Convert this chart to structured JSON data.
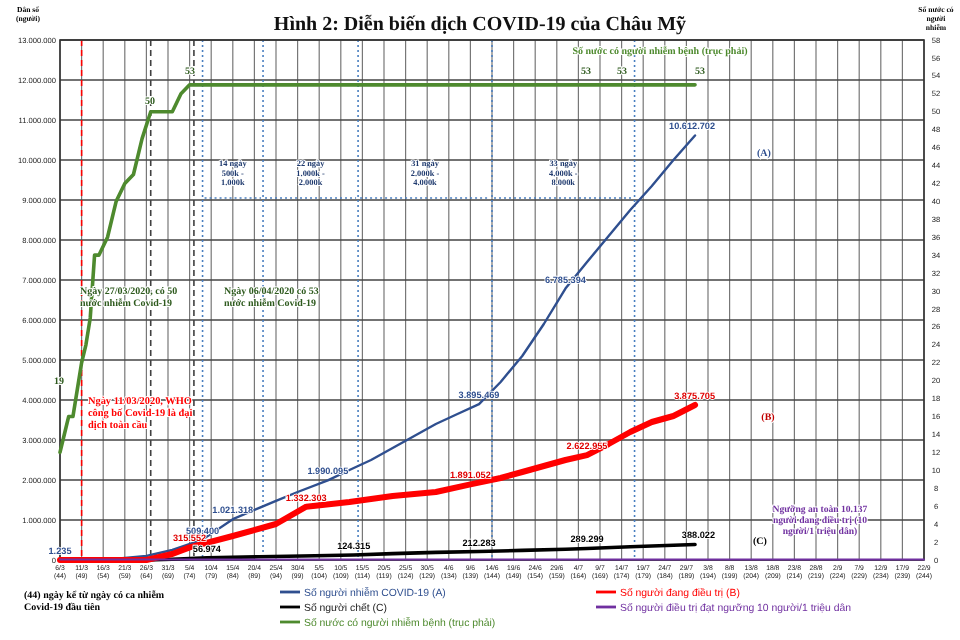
{
  "chart_data": {
    "type": "line",
    "title": "Hình 2: Diễn biến dịch COVID-19 của Châu Mỹ",
    "ylabel": "Dân số (người)",
    "y2label": "Số nước có người nhiễm",
    "xlim": [
      "--03-06",
      "--09-22"
    ],
    "xticks": [
      {
        "value": "--03-06",
        "label": "6/3 (44)"
      },
      {
        "value": "--03-11",
        "label": "11/3 (49)"
      },
      {
        "value": "--03-16",
        "label": "16/3 (54)"
      },
      {
        "value": "--03-21",
        "label": "21/3 (59)"
      },
      {
        "value": "--03-26",
        "label": "26/3 (64)"
      },
      {
        "value": "--03-31",
        "label": "31/3 (69)"
      },
      {
        "value": "--04-05",
        "label": "5/4 (74)"
      },
      {
        "value": "--04-10",
        "label": "10/4 (79)"
      },
      {
        "value": "--04-15",
        "label": "15/4 (84)"
      },
      {
        "value": "--04-20",
        "label": "20/4 (89)"
      },
      {
        "value": "--04-25",
        "label": "25/4 (94)"
      },
      {
        "value": "--04-30",
        "label": "30/4 (99)"
      },
      {
        "value": "--05-05",
        "label": "5/5 (104)"
      },
      {
        "value": "--05-10",
        "label": "10/5 (109)"
      },
      {
        "value": "--05-15",
        "label": "15/5 (114)"
      },
      {
        "value": "--05-20",
        "label": "20/5 (119)"
      },
      {
        "value": "--05-25",
        "label": "25/5 (124)"
      },
      {
        "value": "--05-30",
        "label": "30/5 (129)"
      },
      {
        "value": "--06-04",
        "label": "4/6 (134)"
      },
      {
        "value": "--06-09",
        "label": "9/6 (139)"
      },
      {
        "value": "--06-14",
        "label": "14/6 (144)"
      },
      {
        "value": "--06-19",
        "label": "19/6 (149)"
      },
      {
        "value": "--06-24",
        "label": "24/6 (154)"
      },
      {
        "value": "--06-29",
        "label": "29/6 (159)"
      },
      {
        "value": "--07-04",
        "label": "4/7 (164)"
      },
      {
        "value": "--07-09",
        "label": "9/7 (169)"
      },
      {
        "value": "--07-14",
        "label": "14/7 (174)"
      },
      {
        "value": "--07-19",
        "label": "19/7 (179)"
      },
      {
        "value": "--07-24",
        "label": "24/7 (184)"
      },
      {
        "value": "--07-29",
        "label": "29/7 (189)"
      },
      {
        "value": "--08-03",
        "label": "3/8 (194)"
      },
      {
        "value": "--08-08",
        "label": "8/8 (199)"
      },
      {
        "value": "--08-13",
        "label": "13/8 (204)"
      },
      {
        "value": "--08-18",
        "label": "18/8 (209)"
      },
      {
        "value": "--08-23",
        "label": "23/8 (214)"
      },
      {
        "value": "--08-28",
        "label": "28/8 (219)"
      },
      {
        "value": "--09-02",
        "label": "2/9 (224)"
      },
      {
        "value": "--09-07",
        "label": "7/9 (229)"
      },
      {
        "value": "--09-12",
        "label": "12/9 (234)"
      },
      {
        "value": "--09-17",
        "label": "17/9 (239)"
      },
      {
        "value": "--09-22",
        "label": "22/9 (244)"
      }
    ],
    "ylim": [
      0,
      13000000
    ],
    "yticks": [
      {
        "value": 0,
        "label": "0"
      },
      {
        "value": 1000000,
        "label": "1.000.000"
      },
      {
        "value": 2000000,
        "label": "2.000.000"
      },
      {
        "value": 3000000,
        "label": "3.000.000"
      },
      {
        "value": 4000000,
        "label": "4.000.000"
      },
      {
        "value": 5000000,
        "label": "5.000.000"
      },
      {
        "value": 6000000,
        "label": "6.000.000"
      },
      {
        "value": 7000000,
        "label": "7.000.000"
      },
      {
        "value": 8000000,
        "label": "8.000.000"
      },
      {
        "value": 9000000,
        "label": "9.000.000"
      },
      {
        "value": 10000000,
        "label": "10.000.000"
      },
      {
        "value": 11000000,
        "label": "11.000.000"
      },
      {
        "value": 12000000,
        "label": "12.000.000"
      },
      {
        "value": 13000000,
        "label": "13.000.000"
      }
    ],
    "y2lim": [
      0,
      58
    ],
    "y2ticks": [
      0,
      2,
      4,
      6,
      8,
      10,
      12,
      14,
      16,
      18,
      20,
      22,
      24,
      26,
      28,
      30,
      32,
      34,
      36,
      38,
      40,
      42,
      44,
      46,
      48,
      50,
      52,
      54,
      56,
      58
    ],
    "grid": true,
    "legend": "bottom",
    "marker": "none",
    "line_style": "solid",
    "series": [
      {
        "name": "Số người nhiễm COVID-19 (A)",
        "color": "#2f4f8f",
        "x": [
          "--03-06",
          "--03-16",
          "--03-26",
          "--04-01",
          "--04-08",
          "--04-15",
          "--04-20",
          "--04-25",
          "--04-30",
          "--05-07",
          "--05-12",
          "--05-17",
          "--05-22",
          "--05-27",
          "--06-01",
          "--06-06",
          "--06-11",
          "--06-16",
          "--06-21",
          "--06-26",
          "--07-01",
          "--07-06",
          "--07-11",
          "--07-16",
          "--07-21",
          "--07-26",
          "--07-31"
        ],
        "values": [
          1235,
          0,
          100000,
          250000,
          509400,
          1021318,
          1250000,
          1480000,
          1700000,
          1990095,
          2250000,
          2500000,
          2800000,
          3100000,
          3400000,
          3650000,
          3895469,
          4450000,
          5100000,
          5900000,
          6785394,
          7450000,
          8100000,
          8750000,
          9350000,
          10000000,
          10612702
        ]
      },
      {
        "name": "Số người chết (C)",
        "color": "#000000",
        "x": [
          "--03-06",
          "--03-26",
          "--04-01",
          "--04-09",
          "--04-21",
          "--05-01",
          "--05-13",
          "--05-22",
          "--06-01",
          "--06-11",
          "--06-21",
          "--07-01",
          "--07-06",
          "--07-16",
          "--07-26",
          "--07-31"
        ],
        "values": [
          0,
          0,
          20000,
          56974,
          80000,
          100000,
          124315,
          160000,
          190000,
          212283,
          240000,
          270000,
          289299,
          330000,
          370000,
          388022
        ]
      },
      {
        "name": "Số nước có người nhiễm bệnh (trục phải)",
        "color": "#4e8a2e",
        "axis": "y2",
        "x": [
          "--03-06",
          "--03-07",
          "--03-08",
          "--03-09",
          "--03-10",
          "--03-11",
          "--03-12",
          "--03-13",
          "--03-14",
          "--03-15",
          "--03-17",
          "--03-19",
          "--03-21",
          "--03-23",
          "--03-25",
          "--03-27",
          "--03-30",
          "--04-01",
          "--04-03",
          "--04-05",
          "--07-06",
          "--07-14",
          "--07-31"
        ],
        "values": [
          12,
          14,
          16,
          16,
          19,
          22,
          24,
          27,
          34,
          34,
          36,
          40,
          42,
          43,
          47,
          50,
          50,
          50,
          52,
          53,
          53,
          53,
          53
        ]
      },
      {
        "name": "Số người đang điều trị (B)",
        "color": "#ff0000",
        "x": [
          "--03-06",
          "--03-26",
          "--04-01",
          "--04-05",
          "--04-15",
          "--04-25",
          "--05-02",
          "--05-12",
          "--05-22",
          "--06-01",
          "--06-09",
          "--06-16",
          "--06-21",
          "--06-26",
          "--07-01",
          "--07-06",
          "--07-11",
          "--07-16",
          "--07-21",
          "--07-26",
          "--07-31"
        ],
        "values": [
          0,
          0,
          150000,
          315552,
          600000,
          900000,
          1332303,
          1450000,
          1600000,
          1700000,
          1891052,
          2050000,
          2200000,
          2350000,
          2500000,
          2622955,
          2900000,
          3200000,
          3450000,
          3600000,
          3875705
        ]
      },
      {
        "name": "Số người điều trị đạt ngưỡng 10 người/1 triệu dân",
        "color": "#7030a0",
        "x": [
          "--03-06",
          "--09-22"
        ],
        "values": [
          10137,
          10137
        ]
      }
    ],
    "ref_lines": [
      {
        "axis": "x",
        "value": "--03-11",
        "color": "#ff0000",
        "line_style": "dashed"
      },
      {
        "axis": "x",
        "value": "--03-27",
        "color": "#404040",
        "line_style": "dashed"
      },
      {
        "axis": "x",
        "value": "--04-06",
        "color": "#404040",
        "line_style": "dashed"
      },
      {
        "axis": "x",
        "value": "--04-08",
        "color": "#4a7fc0",
        "line_style": "dotted"
      },
      {
        "axis": "x",
        "value": "--04-22",
        "color": "#4a7fc0",
        "line_style": "dotted"
      },
      {
        "axis": "x",
        "value": "--05-14",
        "color": "#4a7fc0",
        "line_style": "dotted"
      },
      {
        "axis": "x",
        "value": "--06-14",
        "color": "#4a7fc0",
        "line_style": "dotted"
      },
      {
        "axis": "x",
        "value": "--07-17",
        "color": "#4a7fc0",
        "line_style": "dotted"
      }
    ],
    "annotations": [
      "Số nước có người nhiễm bệnh (trục phải)",
      "Ngày 27/03/2020, có 50 nước nhiễm Covid-19",
      "Ngày 06/04/2020 có 53 nước nhiễm Covid-19",
      "Ngày 11/03/2020, WHO công bố Covid-19 là đại dịch toàn cầu",
      "14 ngày 500k - 1.000k",
      "22 ngày 1.000k - 2.000k",
      "31 ngày 2.000k - 4.000k",
      "33 ngày 4.000k - 8.000k",
      "(44) ngày kể từ ngày có ca nhiễm Covid-19 đầu tiên",
      "Ngưỡng an toàn 10.137 người đang điều trị (10 người/1 triệu dân)",
      "(A)",
      "(B)",
      "(C)",
      "19",
      "50",
      "53",
      "53",
      "53",
      "53",
      {
        "text": "1.235",
        "x": "--03-06",
        "y": 1235
      },
      {
        "text": "509.400",
        "x": "--04-08",
        "y": 509400
      },
      {
        "text": "1.021.318",
        "x": "--04-15",
        "y": 1021318
      },
      {
        "text": "1.990.095",
        "x": "--05-07",
        "y": 1990095
      },
      {
        "text": "3.895.469",
        "x": "--06-11",
        "y": 3895469
      },
      {
        "text": "6.785.394",
        "x": "--07-01",
        "y": 6785394
      },
      {
        "text": "10.612.702",
        "x": "--07-31",
        "y": 10612702
      },
      {
        "text": "315.552",
        "x": "--04-05",
        "y": 315552
      },
      {
        "text": "1.332.303",
        "x": "--05-02",
        "y": 1332303
      },
      {
        "text": "1.891.052",
        "x": "--06-09",
        "y": 1891052
      },
      {
        "text": "2.622.955",
        "x": "--07-06",
        "y": 2622955
      },
      {
        "text": "3.875.705",
        "x": "--07-31",
        "y": 3875705
      },
      {
        "text": "56.974",
        "x": "--04-09",
        "y": 56974
      },
      {
        "text": "124.315",
        "x": "--05-13",
        "y": 124315
      },
      {
        "text": "212.283",
        "x": "--06-11",
        "y": 212283
      },
      {
        "text": "289.299",
        "x": "--07-06",
        "y": 289299
      },
      {
        "text": "388.022",
        "x": "--07-31",
        "y": 388022
      }
    ]
  }
}
